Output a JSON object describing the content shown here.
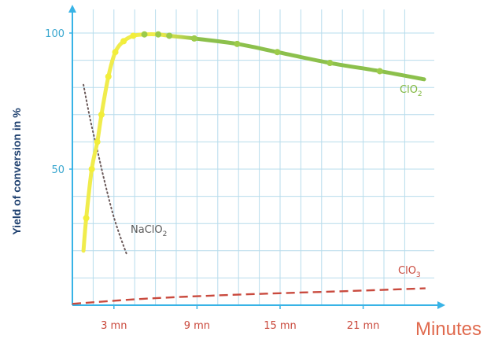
{
  "chart_data": {
    "type": "line",
    "xlabel": "Minutes",
    "ylabel": "Yield of conversion in %",
    "xlim": [
      0,
      25
    ],
    "ylim": [
      0,
      105
    ],
    "x_ticks": [
      3,
      9,
      15,
      21
    ],
    "x_tick_labels": [
      "3 mn",
      "9 mn",
      "15 mn",
      "21 mn"
    ],
    "y_ticks": [
      50,
      100
    ],
    "y_tick_labels": [
      "50",
      "100"
    ],
    "grid": true,
    "colors": {
      "grid": "#b7dcec",
      "axis": "#38b3e6",
      "clo2_rise": "#f0ec4c",
      "clo2_plateau": "#8cc04c",
      "naclo2": "#6b5a5a",
      "clo3": "#c94a3e",
      "ytick": "#3aa7cf",
      "xtick": "#c9473a"
    },
    "series": [
      {
        "name": "ClO",
        "subscript": "2",
        "style": "solid-marker",
        "x": [
          0.8,
          1.0,
          1.4,
          1.8,
          2.1,
          2.6,
          3.1,
          3.7,
          4.4,
          5.2,
          6.2,
          7.0,
          8.8,
          11.9,
          14.8,
          18.6,
          22.2,
          25.4
        ],
        "y": [
          20,
          32,
          50,
          60,
          70,
          84,
          93,
          97,
          99,
          99.5,
          99.5,
          99,
          98,
          96,
          93,
          89,
          86,
          83
        ]
      },
      {
        "name": "NaClO",
        "subscript": "2",
        "style": "dotted",
        "x": [
          0.8,
          1.3,
          1.8,
          2.3,
          2.9,
          3.4,
          3.9
        ],
        "y": [
          81,
          68,
          57,
          46,
          34,
          26,
          19
        ]
      },
      {
        "name": "ClO",
        "subscript": "3",
        "style": "dashed",
        "x": [
          0,
          5,
          10,
          15,
          20,
          25.5
        ],
        "y": [
          0.5,
          2.3,
          3.5,
          4.4,
          5.2,
          6.2
        ]
      }
    ]
  }
}
